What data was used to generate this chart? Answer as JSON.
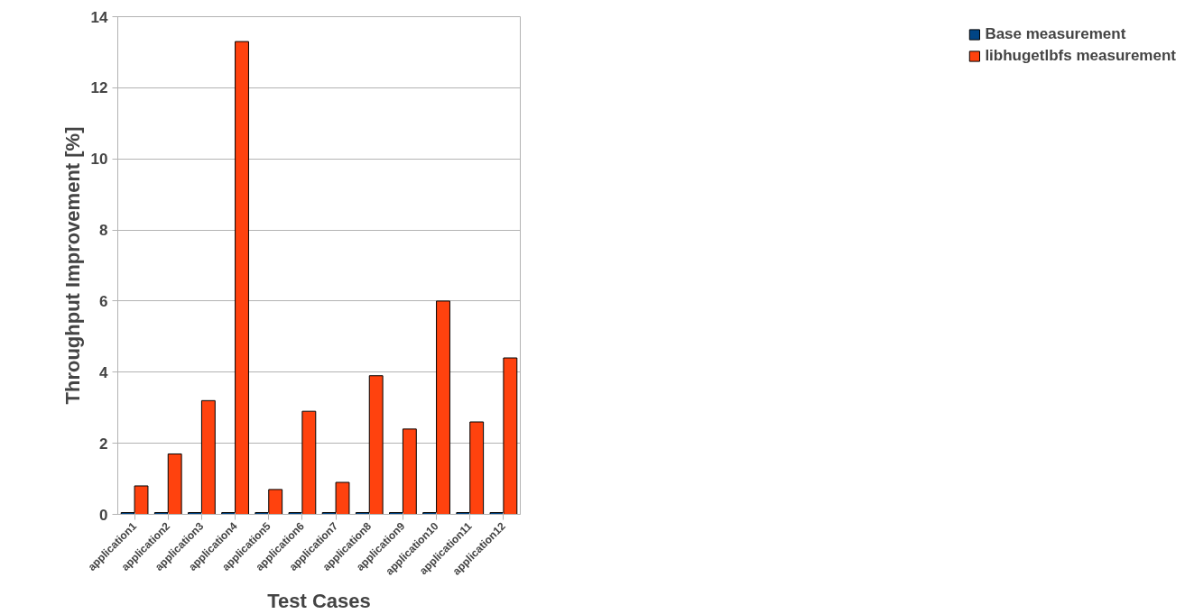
{
  "chart_data": {
    "type": "bar",
    "xlabel": "Test Cases",
    "ylabel": "Throughput Improvement [%]",
    "categories": [
      "application1",
      "application2",
      "application3",
      "application4",
      "application5",
      "application6",
      "application7",
      "application8",
      "application9",
      "application10",
      "application11",
      "application12"
    ],
    "series": [
      {
        "name": "Base measurement",
        "color": "#004586",
        "values": [
          0.05,
          0.05,
          0.05,
          0.05,
          0.05,
          0.05,
          0.05,
          0.05,
          0.05,
          0.05,
          0.05,
          0.05
        ]
      },
      {
        "name": "libhugetlbfs measurement",
        "color": "#ff420e",
        "values": [
          0.8,
          1.7,
          3.2,
          13.3,
          0.7,
          2.9,
          0.9,
          3.9,
          2.4,
          6.0,
          2.6,
          4.4
        ]
      }
    ],
    "ylim": [
      0,
      14
    ],
    "yticks": [
      0,
      2,
      4,
      6,
      8,
      10,
      12,
      14
    ],
    "grid": "y",
    "legend": "right"
  }
}
